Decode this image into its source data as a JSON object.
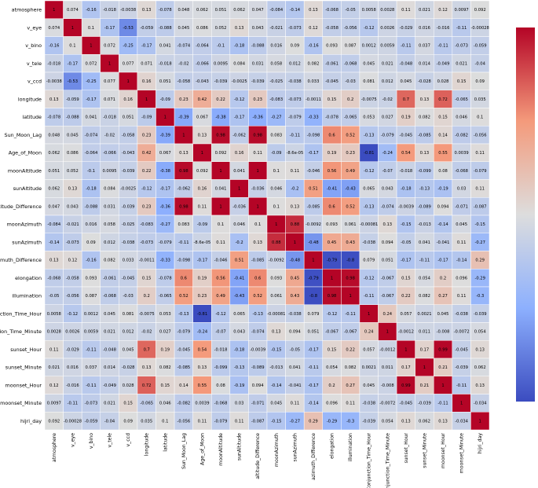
{
  "chart_data": {
    "type": "heatmap",
    "title": "",
    "xlabel": "",
    "ylabel": "",
    "colormap": "coolwarm",
    "color_min": "#3b4cc0",
    "color_mid": "#dddddd",
    "color_max": "#b40426",
    "colorbar": {
      "range": [
        -0.81,
        1.0
      ],
      "ticks": []
    },
    "labels": [
      "atmosphere",
      "v_eye",
      "v_bino",
      "v_tele",
      "v_ccd",
      "longitude",
      "latitude",
      "Sun_Moon_Lag",
      "Age_of_Moon",
      "moonAltitude",
      "sunAltitude",
      "altitude_Difference",
      "moonAzimuth",
      "sunAzimuth",
      "azimuth_Difference",
      "elongation",
      "illumination",
      "Conjunction_Time_Hour",
      "Conjunction_Time_Minute",
      "sunset_Hour",
      "sunset_Minute",
      "moonset_Hour",
      "moonset_Minute",
      "hijri_day"
    ],
    "row_labels_shown": [
      "atmosphere",
      "v_eye",
      "v_bino",
      "v_tele",
      "v_ccd",
      "longitude",
      "latitude",
      "Sun_Moon_Lag",
      "Age_of_Moon",
      "moonAltitude",
      "sunAltitude",
      "altitude_Difference",
      "moonAzimuth",
      "sunAzimuth",
      "azimuth_Difference",
      "elongation",
      "illumination",
      "onjunction_Time_Hour",
      "nction_Time_Minute",
      "sunset_Hour",
      "sunset_Minute",
      "moonset_Hour",
      "moonset_Minute",
      "hijri_day"
    ],
    "matrix": [
      [
        "1",
        "0.074",
        "-0.16",
        "-0.018",
        "-0.0038",
        "0.13",
        "-0.078",
        "0.048",
        "0.062",
        "0.051",
        "0.062",
        "0.047",
        "-0.084",
        "-0.14",
        "0.13",
        "-0.068",
        "-0.05",
        "0.0058",
        "0.0028",
        "0.11",
        "0.021",
        "0.12",
        "0.0097",
        "0.092"
      ],
      [
        "0.074",
        "1",
        "0.1",
        "-0.17",
        "-0.53",
        "-0.059",
        "-0.088",
        "0.045",
        "0.086",
        "0.052",
        "0.13",
        "0.043",
        "-0.021",
        "-0.073",
        "0.12",
        "-0.058",
        "-0.056",
        "-0.12",
        "0.0026",
        "-0.029",
        "0.016",
        "-0.016",
        "-0.11",
        "-0.00028"
      ],
      [
        "-0.16",
        "0.1",
        "1",
        "0.072",
        "-0.25",
        "-0.17",
        "0.041",
        "-0.074",
        "-0.064",
        "-0.1",
        "-0.18",
        "-0.088",
        "0.016",
        "0.09",
        "-0.16",
        "0.093",
        "0.087",
        "0.0012",
        "0.0059",
        "-0.11",
        "0.037",
        "-0.11",
        "-0.073",
        "-0.059"
      ],
      [
        "-0.018",
        "-0.17",
        "0.072",
        "1",
        "0.077",
        "0.071",
        "-0.018",
        "-0.02",
        "-0.066",
        "0.0095",
        "0.084",
        "0.031",
        "0.058",
        "0.012",
        "0.082",
        "-0.061",
        "-0.068",
        "0.045",
        "0.021",
        "-0.048",
        "0.014",
        "-0.049",
        "0.021",
        "-0.04"
      ],
      [
        "-0.0038",
        "-0.53",
        "-0.25",
        "0.077",
        "1",
        "0.16",
        "0.051",
        "-0.058",
        "-0.043",
        "-0.039",
        "-0.0025",
        "-0.039",
        "-0.025",
        "-0.038",
        "0.033",
        "-0.045",
        "-0.03",
        "0.081",
        "0.012",
        "0.045",
        "-0.028",
        "0.028",
        "0.15",
        "0.09"
      ],
      [
        "0.13",
        "-0.059",
        "-0.17",
        "0.071",
        "0.16",
        "1",
        "-0.09",
        "0.23",
        "0.42",
        "0.22",
        "-0.12",
        "0.23",
        "-0.083",
        "-0.073",
        "-0.0011",
        "0.15",
        "0.2",
        "-0.0075",
        "-0.02",
        "0.7",
        "0.13",
        "0.72",
        "-0.065",
        "0.035"
      ],
      [
        "-0.078",
        "-0.088",
        "0.041",
        "-0.018",
        "0.051",
        "-0.09",
        "1",
        "-0.39",
        "0.067",
        "-0.38",
        "-0.17",
        "-0.36",
        "-0.27",
        "-0.079",
        "-0.33",
        "-0.078",
        "-0.065",
        "0.053",
        "0.027",
        "0.19",
        "0.082",
        "0.15",
        "0.046",
        "0.1"
      ],
      [
        "0.048",
        "0.045",
        "-0.074",
        "-0.02",
        "-0.058",
        "0.23",
        "-0.39",
        "1",
        "0.13",
        "0.98",
        "-0.062",
        "0.98",
        "0.083",
        "-0.11",
        "-0.098",
        "0.6",
        "0.52",
        "-0.13",
        "-0.079",
        "-0.045",
        "-0.085",
        "0.14",
        "-0.082",
        "-0.056"
      ],
      [
        "0.062",
        "0.086",
        "-0.064",
        "-0.066",
        "-0.043",
        "0.42",
        "0.067",
        "0.13",
        "1",
        "0.092",
        "0.16",
        "0.11",
        "-0.09",
        "-8.6e-05",
        "-0.17",
        "0.19",
        "0.23",
        "-0.81",
        "-0.24",
        "0.54",
        "0.13",
        "0.55",
        "0.0039",
        "0.11"
      ],
      [
        "0.051",
        "0.052",
        "-0.1",
        "0.0095",
        "-0.039",
        "0.22",
        "-0.38",
        "0.98",
        "0.092",
        "1",
        "0.041",
        "1",
        "0.1",
        "0.11",
        "-0.046",
        "0.56",
        "0.49",
        "-0.12",
        "-0.07",
        "-0.018",
        "-0.099",
        "0.08",
        "-0.068",
        "-0.079"
      ],
      [
        "0.062",
        "0.13",
        "-0.18",
        "0.084",
        "-0.0025",
        "-0.12",
        "-0.17",
        "-0.062",
        "0.16",
        "0.041",
        "1",
        "-0.036",
        "0.046",
        "-0.2",
        "0.51",
        "-0.41",
        "-0.43",
        "0.065",
        "0.043",
        "-0.18",
        "-0.13",
        "-0.19",
        "0.03",
        "0.11"
      ],
      [
        "0.047",
        "0.043",
        "-0.088",
        "0.031",
        "-0.039",
        "0.23",
        "-0.36",
        "0.98",
        "0.11",
        "1",
        "-0.036",
        "1",
        "0.1",
        "0.13",
        "-0.085",
        "0.6",
        "0.52",
        "-0.13",
        "-0.074",
        "-0.0039",
        "-0.089",
        "0.094",
        "-0.071",
        "-0.087"
      ],
      [
        "-0.084",
        "-0.021",
        "0.016",
        "0.058",
        "-0.025",
        "-0.083",
        "-0.27",
        "0.083",
        "-0.09",
        "0.1",
        "0.046",
        "0.1",
        "1",
        "0.88",
        "-0.0092",
        "0.093",
        "0.061",
        "-0.00081",
        "0.13",
        "-0.15",
        "-0.013",
        "-0.14",
        "0.045",
        "-0.15"
      ],
      [
        "-0.14",
        "-0.073",
        "0.09",
        "0.012",
        "-0.038",
        "-0.073",
        "-0.079",
        "-0.11",
        "-8.6e-05",
        "0.11",
        "-0.2",
        "0.13",
        "0.88",
        "1",
        "-0.48",
        "0.45",
        "0.43",
        "-0.038",
        "0.094",
        "-0.05",
        "0.041",
        "-0.041",
        "0.11",
        "-0.27"
      ],
      [
        "0.13",
        "0.12",
        "-0.16",
        "0.082",
        "0.033",
        "-0.0011",
        "-0.33",
        "-0.098",
        "-0.17",
        "-0.046",
        "0.51",
        "-0.085",
        "-0.0092",
        "-0.48",
        "1",
        "-0.79",
        "-0.8",
        "0.079",
        "0.051",
        "-0.17",
        "-0.11",
        "-0.17",
        "-0.14",
        "0.29"
      ],
      [
        "-0.068",
        "-0.058",
        "0.093",
        "-0.061",
        "-0.045",
        "0.15",
        "-0.078",
        "0.6",
        "0.19",
        "0.56",
        "-0.41",
        "0.6",
        "0.093",
        "0.45",
        "-0.79",
        "1",
        "0.98",
        "-0.12",
        "-0.067",
        "0.15",
        "0.054",
        "0.2",
        "0.096",
        "-0.29"
      ],
      [
        "-0.05",
        "-0.056",
        "0.087",
        "-0.068",
        "-0.03",
        "0.2",
        "-0.065",
        "0.52",
        "0.23",
        "0.49",
        "-0.43",
        "0.52",
        "0.061",
        "0.43",
        "-0.8",
        "0.98",
        "1",
        "-0.11",
        "-0.067",
        "0.22",
        "0.082",
        "0.27",
        "0.11",
        "-0.3"
      ],
      [
        "0.0058",
        "-0.12",
        "0.0012",
        "0.045",
        "0.081",
        "-0.0075",
        "0.053",
        "-0.13",
        "-0.81",
        "-0.12",
        "0.065",
        "-0.13",
        "-0.00081",
        "-0.038",
        "0.079",
        "-0.12",
        "-0.11",
        "1",
        "0.24",
        "0.057",
        "0.0021",
        "0.045",
        "-0.038",
        "-0.039"
      ],
      [
        "0.0028",
        "0.0026",
        "0.0059",
        "0.021",
        "0.012",
        "-0.02",
        "0.027",
        "-0.079",
        "-0.24",
        "-0.07",
        "0.043",
        "-0.074",
        "0.13",
        "0.094",
        "0.051",
        "-0.067",
        "-0.067",
        "0.24",
        "1",
        "-0.0012",
        "0.011",
        "-0.008",
        "-0.0072",
        "0.054"
      ],
      [
        "0.11",
        "-0.029",
        "-0.11",
        "-0.048",
        "0.045",
        "0.7",
        "0.19",
        "-0.045",
        "0.54",
        "-0.018",
        "-0.18",
        "-0.0039",
        "-0.15",
        "-0.05",
        "-0.17",
        "0.15",
        "0.22",
        "0.057",
        "-0.0012",
        "1",
        "0.17",
        "0.99",
        "-0.045",
        "0.13"
      ],
      [
        "0.021",
        "0.016",
        "0.037",
        "0.014",
        "-0.028",
        "0.13",
        "0.082",
        "-0.085",
        "0.13",
        "-0.099",
        "-0.13",
        "-0.089",
        "-0.013",
        "0.041",
        "-0.11",
        "0.054",
        "0.082",
        "0.0021",
        "0.011",
        "0.17",
        "1",
        "0.21",
        "-0.039",
        "0.062"
      ],
      [
        "0.12",
        "-0.016",
        "-0.11",
        "-0.049",
        "0.028",
        "0.72",
        "0.15",
        "0.14",
        "0.55",
        "0.08",
        "-0.19",
        "0.094",
        "-0.14",
        "-0.041",
        "-0.17",
        "0.2",
        "0.27",
        "0.045",
        "-0.008",
        "0.99",
        "0.21",
        "1",
        "-0.11",
        "0.13"
      ],
      [
        "0.0097",
        "-0.11",
        "-0.073",
        "0.021",
        "0.15",
        "-0.065",
        "0.046",
        "-0.082",
        "0.0039",
        "-0.068",
        "0.03",
        "-0.071",
        "0.045",
        "0.11",
        "-0.14",
        "0.096",
        "0.11",
        "-0.038",
        "-0.0072",
        "-0.045",
        "-0.039",
        "-0.11",
        "1",
        "-0.034"
      ],
      [
        "0.092",
        "-0.00028",
        "-0.059",
        "-0.04",
        "0.09",
        "0.035",
        "0.1",
        "-0.056",
        "0.11",
        "-0.079",
        "0.11",
        "-0.087",
        "-0.15",
        "-0.27",
        "0.29",
        "-0.29",
        "-0.3",
        "-0.039",
        "0.054",
        "0.13",
        "0.062",
        "0.13",
        "-0.034",
        "1"
      ]
    ]
  }
}
